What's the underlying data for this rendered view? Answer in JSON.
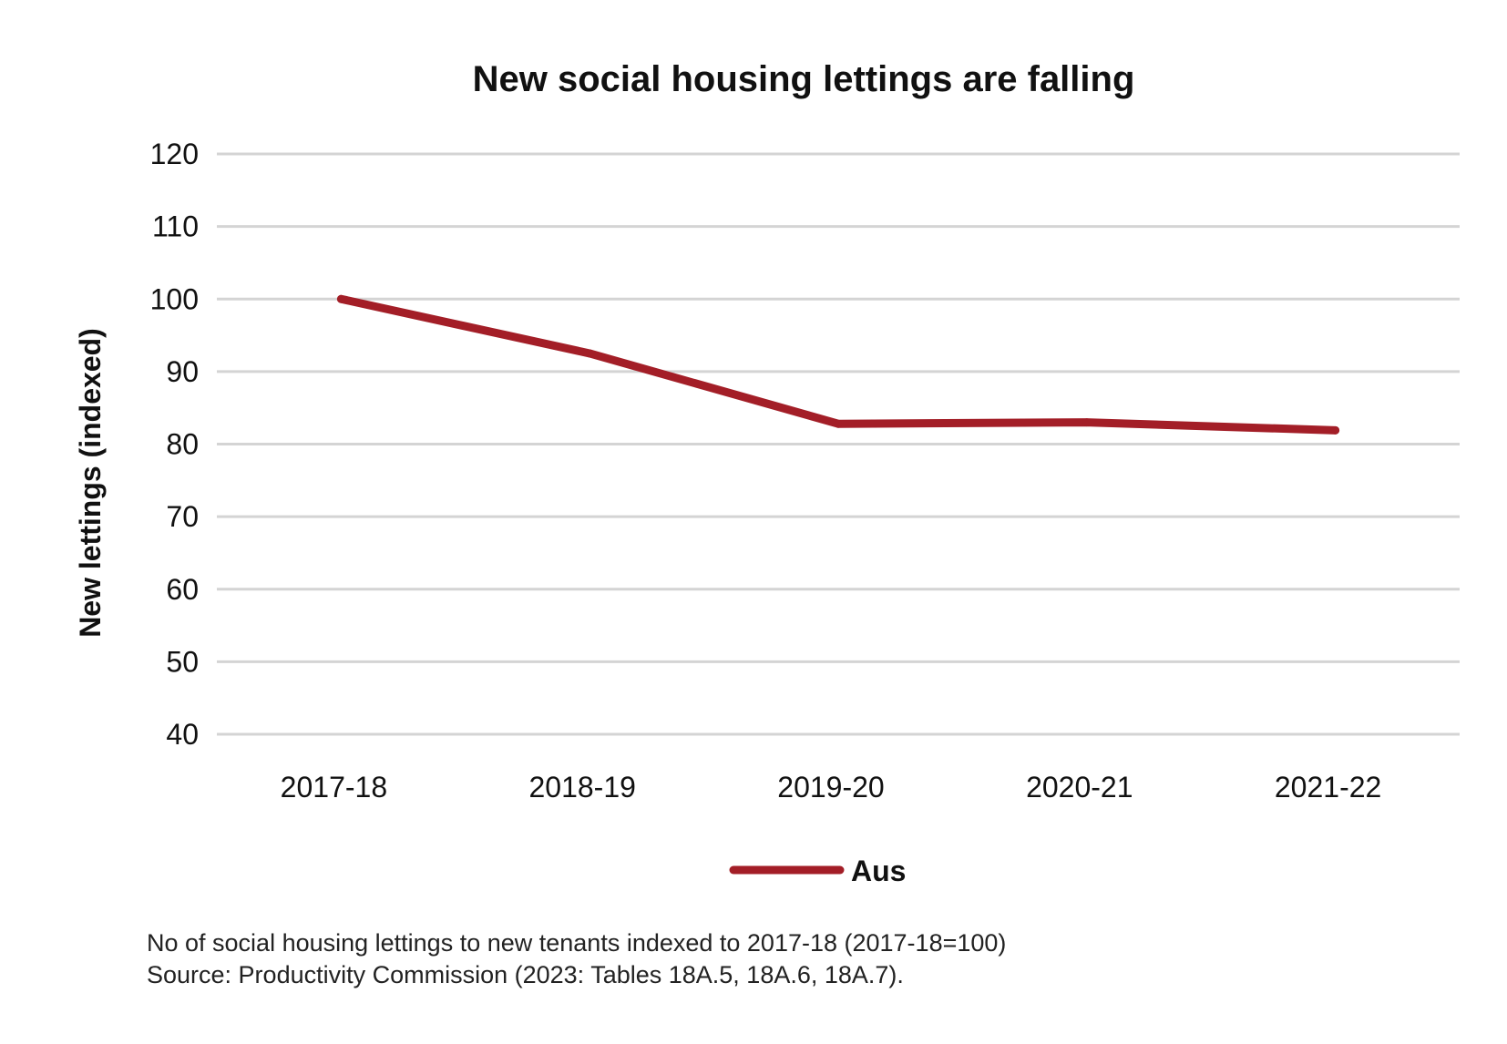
{
  "chart_data": {
    "type": "line",
    "title": "New social housing lettings are falling",
    "xlabel": "",
    "ylabel": "New lettings (indexed)",
    "categories": [
      "2017-18",
      "2018-19",
      "2019-20",
      "2020-21",
      "2021-22"
    ],
    "series": [
      {
        "name": "Aus",
        "values": [
          100,
          92.5,
          82.8,
          83,
          81.9
        ],
        "color": "#a31e27"
      }
    ],
    "ylim": [
      40,
      120
    ],
    "yticks": [
      "40",
      "50",
      "60",
      "70",
      "80",
      "90",
      "100",
      "110",
      "120"
    ],
    "grid": true,
    "legend_position": "bottom-center"
  },
  "notes": {
    "line1": "No of social housing lettings to new tenants indexed to 2017-18 (2017-18=100)",
    "line2": "Source: Productivity Commission (2023: Tables 18A.5, 18A.6, 18A.7)."
  }
}
